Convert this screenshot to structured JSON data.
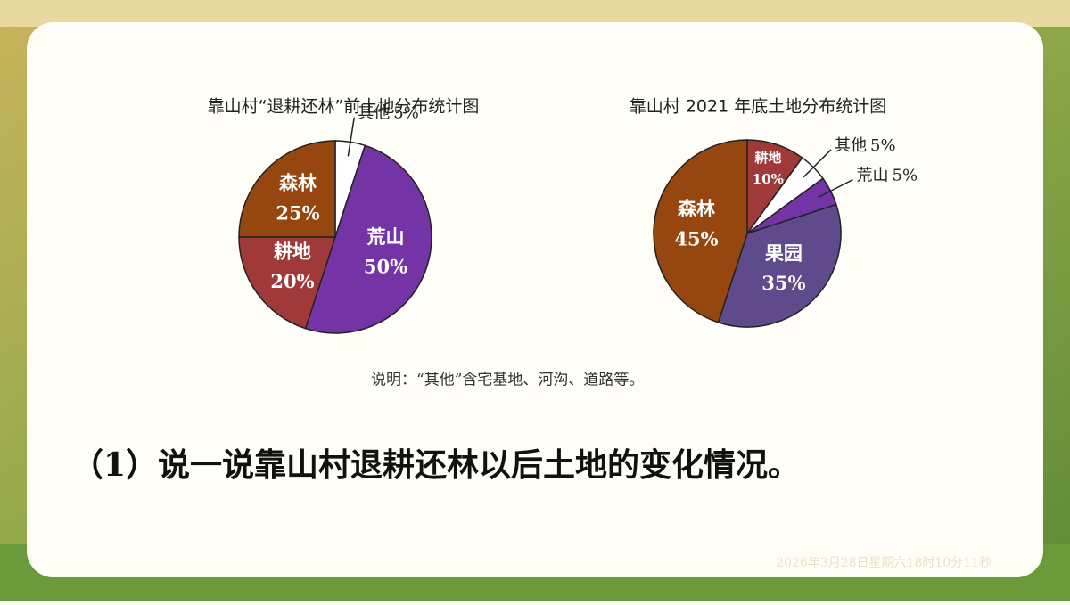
{
  "chart_data": [
    {
      "type": "pie",
      "title": "靠山村“退耕还林”前土地分布统计图",
      "categories": [
        "其他",
        "荒山",
        "耕地",
        "森林"
      ],
      "values": [
        5,
        50,
        20,
        25
      ],
      "value_labels": [
        "5%",
        "50%",
        "20%",
        "25%"
      ],
      "colors": [
        "#ffffff",
        "#7434a6",
        "#a03a3a",
        "#95470f"
      ]
    },
    {
      "type": "pie",
      "title": "靠山村 2021 年底土地分布统计图",
      "categories": [
        "耕地",
        "其他",
        "荒山",
        "果园",
        "森林"
      ],
      "values": [
        10,
        5,
        5,
        35,
        45
      ],
      "value_labels": [
        "10%",
        "5%",
        "5%",
        "35%",
        "45%"
      ],
      "colors": [
        "#a03a3a",
        "#ffffff",
        "#7434a6",
        "#5f4a8c",
        "#95470f"
      ]
    }
  ],
  "note": "说明：“其他”含宅基地、河沟、道路等。",
  "question": "（1）说一说靠山村退耕还林以后土地的变化情况。",
  "timestamp": "2026年3月28日星期六18时10分11秒"
}
